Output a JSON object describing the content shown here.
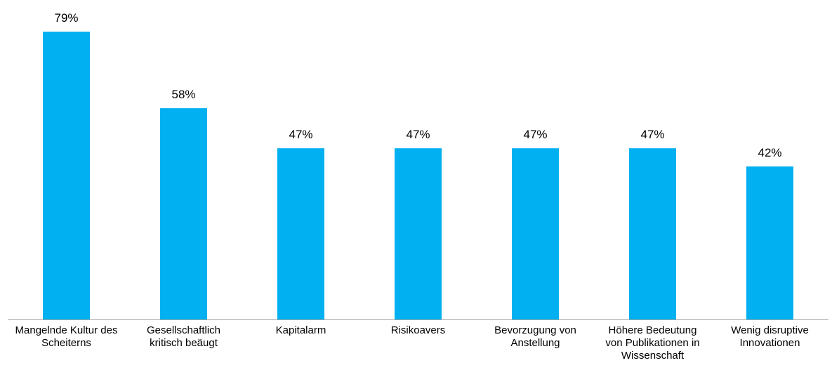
{
  "chart_data": {
    "type": "bar",
    "categories": [
      "Mangelnde Kultur des Scheiterns",
      "Gesellschaftlich kritisch beäugt",
      "Kapitalarm",
      "Risikoavers",
      "Bevorzugung von Anstellung",
      "Höhere Bedeutung von Publikationen in Wissenschaft",
      "Wenig disruptive Innovationen"
    ],
    "values": [
      79,
      58,
      47,
      47,
      47,
      47,
      42
    ],
    "value_labels": [
      "79%",
      "58%",
      "47%",
      "47%",
      "47%",
      "47%",
      "42%"
    ],
    "color": "#00b0f0",
    "ylim": [
      0,
      80
    ]
  }
}
